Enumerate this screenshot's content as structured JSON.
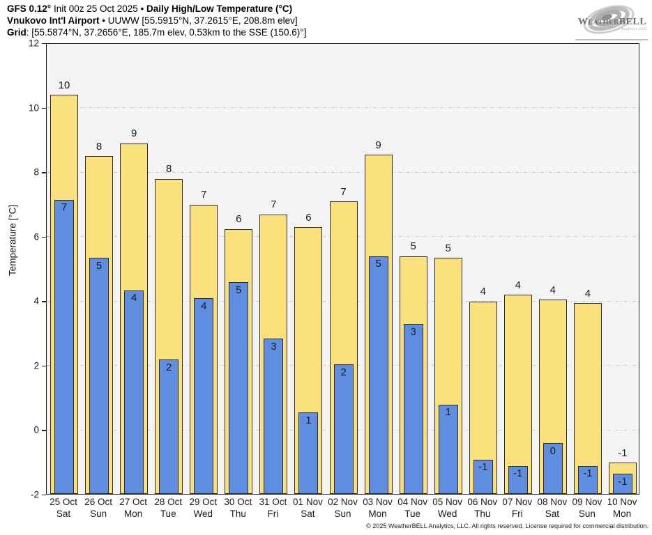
{
  "header": {
    "line1": {
      "bold1": "GFS 0.12°",
      "regular": " Init 00z 25 Oct 2025 • ",
      "bold2": "Daily High/Low Temperature (°C)"
    },
    "line2": {
      "bold": "Vnukovo Int'l Airport",
      "regular": " • UUWW [55.5915°N, 37.2615°E, 208.8m elev]"
    },
    "line3": {
      "bold": "Grid",
      "regular": ": [55.5874°N, 37.2656°E, 185.7m elev, 0.53km to the SSE (150.6)°]"
    }
  },
  "logo": {
    "name": "WeatherBELL",
    "subtext": "Analytics LLC"
  },
  "chart_data": {
    "type": "bar",
    "title": "Daily High/Low Temperature (°C)",
    "xlabel": "",
    "ylabel": "Temperature [°C]",
    "ylim": [
      -2,
      12
    ],
    "yticks": [
      12,
      10,
      8,
      6,
      4,
      2,
      0,
      -2
    ],
    "grid": "horizontal dash-dot, drawn under bars",
    "legend_position": "none",
    "bar_base": -2,
    "categories": [
      {
        "date": "25 Oct",
        "day": "Sat"
      },
      {
        "date": "26 Oct",
        "day": "Sun"
      },
      {
        "date": "27 Oct",
        "day": "Mon"
      },
      {
        "date": "28 Oct",
        "day": "Tue"
      },
      {
        "date": "29 Oct",
        "day": "Wed"
      },
      {
        "date": "30 Oct",
        "day": "Thu"
      },
      {
        "date": "31 Oct",
        "day": "Fri"
      },
      {
        "date": "01 Nov",
        "day": "Sat"
      },
      {
        "date": "02 Nov",
        "day": "Sun"
      },
      {
        "date": "03 Nov",
        "day": "Mon"
      },
      {
        "date": "04 Nov",
        "day": "Tue"
      },
      {
        "date": "05 Nov",
        "day": "Wed"
      },
      {
        "date": "06 Nov",
        "day": "Thu"
      },
      {
        "date": "07 Nov",
        "day": "Fri"
      },
      {
        "date": "08 Nov",
        "day": "Sat"
      },
      {
        "date": "09 Nov",
        "day": "Sun"
      },
      {
        "date": "10 Nov",
        "day": "Mon"
      }
    ],
    "series": [
      {
        "name": "Daily High",
        "color": "#fbe17d",
        "values": [
          10.4,
          8.5,
          8.9,
          7.8,
          7.0,
          6.25,
          6.7,
          6.3,
          7.1,
          8.55,
          5.4,
          5.35,
          4.0,
          4.2,
          4.05,
          3.95,
          -1.0
        ],
        "labels": [
          "10",
          "8",
          "9",
          "8",
          "7",
          "6",
          "7",
          "6",
          "7",
          "9",
          "5",
          "5",
          "4",
          "4",
          "4",
          "4",
          "-1"
        ]
      },
      {
        "name": "Daily Low",
        "color": "#5f8ee0",
        "values": [
          7.15,
          5.35,
          4.35,
          2.2,
          4.1,
          4.6,
          2.85,
          0.55,
          2.05,
          5.4,
          3.3,
          0.8,
          -0.9,
          -1.1,
          -0.4,
          -1.1,
          -1.35
        ],
        "labels": [
          "7",
          "5",
          "4",
          "2",
          "4",
          "5",
          "3",
          "1",
          "2",
          "5",
          "3",
          "1",
          "-1",
          "-1",
          "0",
          "-1",
          "-1"
        ]
      }
    ],
    "colors": {
      "bar_border": "#2d2d2d",
      "plot_bg": "#f4f4f4",
      "gridline": "#c9c9c9",
      "page_bg": "#ffffff"
    }
  },
  "footer": {
    "copyright": "© 2025 WeatherBELL Analytics, LLC. All rights reserved. License required for commercial distribution."
  }
}
